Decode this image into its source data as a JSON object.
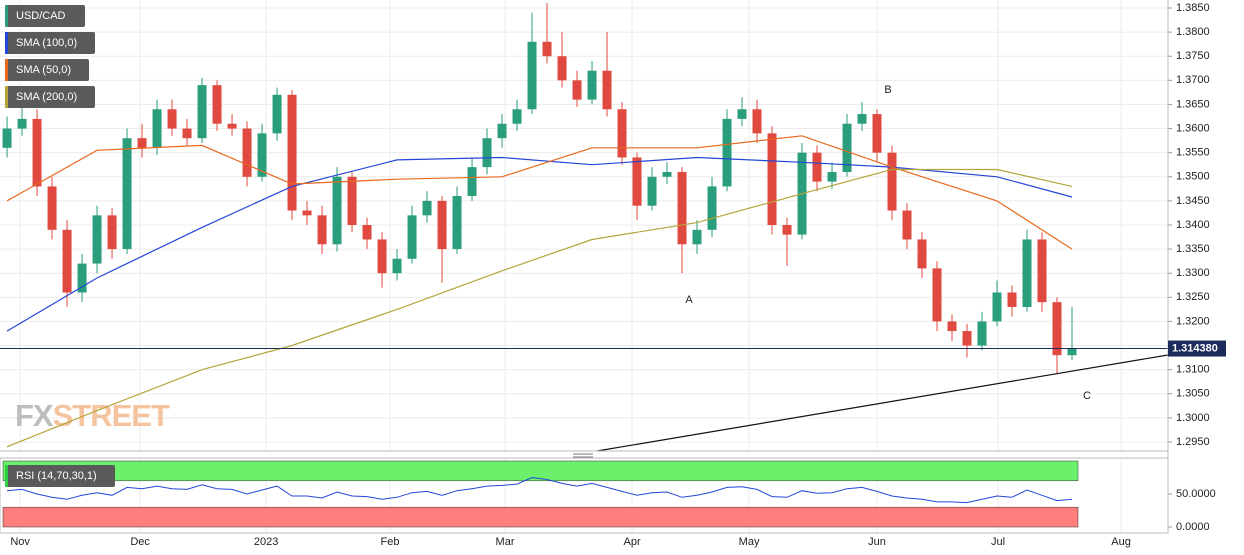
{
  "chart_data": [
    {
      "type": "candlestick",
      "title": "USD/CAD",
      "colors": {
        "up": "#2a9d7c",
        "down": "#e0493f"
      },
      "ohlc": [
        [
          1.356,
          1.3625,
          1.354,
          1.36
        ],
        [
          1.36,
          1.365,
          1.3585,
          1.362
        ],
        [
          1.362,
          1.364,
          1.346,
          1.348
        ],
        [
          1.348,
          1.35,
          1.337,
          1.339
        ],
        [
          1.339,
          1.341,
          1.323,
          1.326
        ],
        [
          1.326,
          1.334,
          1.324,
          1.332
        ],
        [
          1.332,
          1.344,
          1.33,
          1.342
        ],
        [
          1.342,
          1.3435,
          1.333,
          1.335
        ],
        [
          1.335,
          1.36,
          1.334,
          1.358
        ],
        [
          1.358,
          1.361,
          1.354,
          1.356
        ],
        [
          1.356,
          1.366,
          1.3545,
          1.364
        ],
        [
          1.364,
          1.366,
          1.3585,
          1.36
        ],
        [
          1.36,
          1.362,
          1.3565,
          1.358
        ],
        [
          1.358,
          1.3705,
          1.357,
          1.369
        ],
        [
          1.369,
          1.37,
          1.3595,
          1.361
        ],
        [
          1.361,
          1.363,
          1.3585,
          1.36
        ],
        [
          1.36,
          1.3615,
          1.348,
          1.35
        ],
        [
          1.35,
          1.361,
          1.349,
          1.359
        ],
        [
          1.359,
          1.3685,
          1.3575,
          1.367
        ],
        [
          1.367,
          1.368,
          1.341,
          1.343
        ],
        [
          1.343,
          1.345,
          1.34,
          1.342
        ],
        [
          1.342,
          1.344,
          1.334,
          1.336
        ],
        [
          1.336,
          1.352,
          1.3345,
          1.35
        ],
        [
          1.35,
          1.351,
          1.3385,
          1.34
        ],
        [
          1.34,
          1.3415,
          1.335,
          1.337
        ],
        [
          1.337,
          1.3385,
          1.327,
          1.33
        ],
        [
          1.33,
          1.335,
          1.3285,
          1.333
        ],
        [
          1.333,
          1.344,
          1.332,
          1.342
        ],
        [
          1.342,
          1.347,
          1.3405,
          1.345
        ],
        [
          1.345,
          1.346,
          1.328,
          1.335
        ],
        [
          1.335,
          1.348,
          1.334,
          1.346
        ],
        [
          1.346,
          1.354,
          1.345,
          1.352
        ],
        [
          1.352,
          1.36,
          1.3505,
          1.358
        ],
        [
          1.358,
          1.363,
          1.356,
          1.361
        ],
        [
          1.361,
          1.366,
          1.3595,
          1.364
        ],
        [
          1.364,
          1.384,
          1.363,
          1.378
        ],
        [
          1.378,
          1.386,
          1.3735,
          1.375
        ],
        [
          1.375,
          1.38,
          1.3685,
          1.37
        ],
        [
          1.37,
          1.372,
          1.3645,
          1.366
        ],
        [
          1.366,
          1.374,
          1.365,
          1.372
        ],
        [
          1.372,
          1.38,
          1.3625,
          1.364
        ],
        [
          1.364,
          1.3655,
          1.3525,
          1.354
        ],
        [
          1.354,
          1.355,
          1.341,
          1.344
        ],
        [
          1.344,
          1.352,
          1.343,
          1.35
        ],
        [
          1.35,
          1.353,
          1.3485,
          1.351
        ],
        [
          1.351,
          1.352,
          1.33,
          1.336
        ],
        [
          1.336,
          1.341,
          1.334,
          1.339
        ],
        [
          1.339,
          1.35,
          1.3375,
          1.348
        ],
        [
          1.348,
          1.364,
          1.347,
          1.362
        ],
        [
          1.362,
          1.3665,
          1.3605,
          1.364
        ],
        [
          1.364,
          1.366,
          1.357,
          1.359
        ],
        [
          1.359,
          1.3605,
          1.338,
          1.34
        ],
        [
          1.34,
          1.3415,
          1.3315,
          1.338
        ],
        [
          1.338,
          1.357,
          1.337,
          1.355
        ],
        [
          1.355,
          1.3565,
          1.347,
          1.349
        ],
        [
          1.349,
          1.353,
          1.3475,
          1.351
        ],
        [
          1.351,
          1.363,
          1.35,
          1.361
        ],
        [
          1.361,
          1.3655,
          1.3595,
          1.363
        ],
        [
          1.363,
          1.364,
          1.353,
          1.355
        ],
        [
          1.355,
          1.3565,
          1.341,
          1.343
        ],
        [
          1.343,
          1.3445,
          1.335,
          1.337
        ],
        [
          1.337,
          1.3385,
          1.329,
          1.331
        ],
        [
          1.331,
          1.3325,
          1.318,
          1.32
        ],
        [
          1.32,
          1.3215,
          1.316,
          1.318
        ],
        [
          1.318,
          1.3195,
          1.3125,
          1.315
        ],
        [
          1.315,
          1.322,
          1.314,
          1.32
        ],
        [
          1.32,
          1.3285,
          1.319,
          1.326
        ],
        [
          1.326,
          1.3275,
          1.321,
          1.323
        ],
        [
          1.323,
          1.339,
          1.322,
          1.337
        ],
        [
          1.337,
          1.3385,
          1.322,
          1.324
        ],
        [
          1.324,
          1.325,
          1.309,
          1.313
        ],
        [
          1.313,
          1.323,
          1.312,
          1.31438
        ]
      ],
      "series": [
        {
          "name": "SMA (100,0)",
          "color": "#2446d8",
          "x": [
            0,
            6,
            13,
            19,
            26,
            33,
            39,
            46,
            53,
            59,
            66,
            71
          ],
          "values": [
            1.318,
            1.329,
            1.3395,
            1.348,
            1.3535,
            1.354,
            1.3525,
            1.354,
            1.353,
            1.352,
            1.35,
            1.3458
          ]
        },
        {
          "name": "SMA (50,0)",
          "color": "#e8691e",
          "x": [
            0,
            6,
            13,
            19,
            26,
            33,
            39,
            46,
            53,
            59,
            66,
            71
          ],
          "values": [
            1.345,
            1.3555,
            1.3565,
            1.3485,
            1.3495,
            1.35,
            1.356,
            1.356,
            1.3585,
            1.352,
            1.345,
            1.335
          ]
        },
        {
          "name": "SMA (200,0)",
          "color": "#b5a43a",
          "x": [
            0,
            6,
            13,
            19,
            26,
            33,
            39,
            46,
            53,
            59,
            66,
            71
          ],
          "values": [
            1.294,
            1.3015,
            1.31,
            1.315,
            1.3225,
            1.3305,
            1.337,
            1.3405,
            1.3465,
            1.3515,
            1.3515,
            1.348
          ]
        }
      ],
      "xlim": [
        -0.47,
        77.4
      ],
      "ylim": [
        1.29313,
        1.38666
      ],
      "xticks": [
        {
          "value": 0.87,
          "label": "Nov"
        },
        {
          "value": 8.87,
          "label": "Dec"
        },
        {
          "value": 17.27,
          "label": "2023"
        },
        {
          "value": 25.53,
          "label": "Feb"
        },
        {
          "value": 33.2,
          "label": "Mar"
        },
        {
          "value": 41.67,
          "label": "Apr"
        },
        {
          "value": 49.47,
          "label": "May"
        },
        {
          "value": 58.0,
          "label": "Jun"
        },
        {
          "value": 66.07,
          "label": "Jul"
        },
        {
          "value": 74.27,
          "label": "Aug"
        }
      ],
      "yticks": [
        {
          "value": 1.295,
          "label": "1.2950"
        },
        {
          "value": 1.3,
          "label": "1.3000"
        },
        {
          "value": 1.305,
          "label": "1.3050"
        },
        {
          "value": 1.31,
          "label": "1.3100"
        },
        {
          "value": 1.315,
          "label": "1.3150"
        },
        {
          "value": 1.32,
          "label": "1.3200"
        },
        {
          "value": 1.325,
          "label": "1.3250"
        },
        {
          "value": 1.33,
          "label": "1.3300"
        },
        {
          "value": 1.335,
          "label": "1.3350"
        },
        {
          "value": 1.34,
          "label": "1.3400"
        },
        {
          "value": 1.345,
          "label": "1.3450"
        },
        {
          "value": 1.35,
          "label": "1.3500"
        },
        {
          "value": 1.355,
          "label": "1.3550"
        },
        {
          "value": 1.36,
          "label": "1.3600"
        },
        {
          "value": 1.365,
          "label": "1.3650"
        },
        {
          "value": 1.37,
          "label": "1.3700"
        },
        {
          "value": 1.375,
          "label": "1.3750"
        },
        {
          "value": 1.38,
          "label": "1.3800"
        },
        {
          "value": 1.385,
          "label": "1.3850"
        }
      ],
      "grid": true,
      "last": {
        "value": 1.31438,
        "label": "1.314380"
      },
      "annotations": [
        "A",
        "B",
        "C"
      ],
      "watermark": [
        "FX",
        "STREET"
      ]
    },
    {
      "type": "rsi",
      "title": "RSI (14,70,30,1)",
      "color": "#2446d8",
      "values": [
        55,
        57,
        50,
        45,
        42,
        48,
        52,
        48,
        60,
        58,
        62,
        58,
        57,
        64,
        58,
        57,
        50,
        56,
        62,
        47,
        47,
        44,
        53,
        47,
        46,
        42,
        45,
        52,
        54,
        48,
        55,
        58,
        62,
        63,
        65,
        75,
        72,
        66,
        62,
        66,
        60,
        54,
        48,
        52,
        53,
        45,
        48,
        53,
        60,
        61,
        57,
        46,
        45,
        55,
        51,
        52,
        58,
        60,
        54,
        47,
        44,
        42,
        38,
        38,
        37,
        42,
        47,
        45,
        56,
        48,
        40,
        42
      ],
      "ylim": [
        0,
        100
      ],
      "yticks": [
        {
          "value": 50,
          "label": "50.0000"
        },
        {
          "value": 0,
          "label": "0.0000"
        }
      ],
      "zones": [
        {
          "from": 70,
          "to": 100,
          "color": "#6cf06c"
        },
        {
          "from": 0,
          "to": 30,
          "color": "#ff7d7d"
        }
      ]
    }
  ]
}
